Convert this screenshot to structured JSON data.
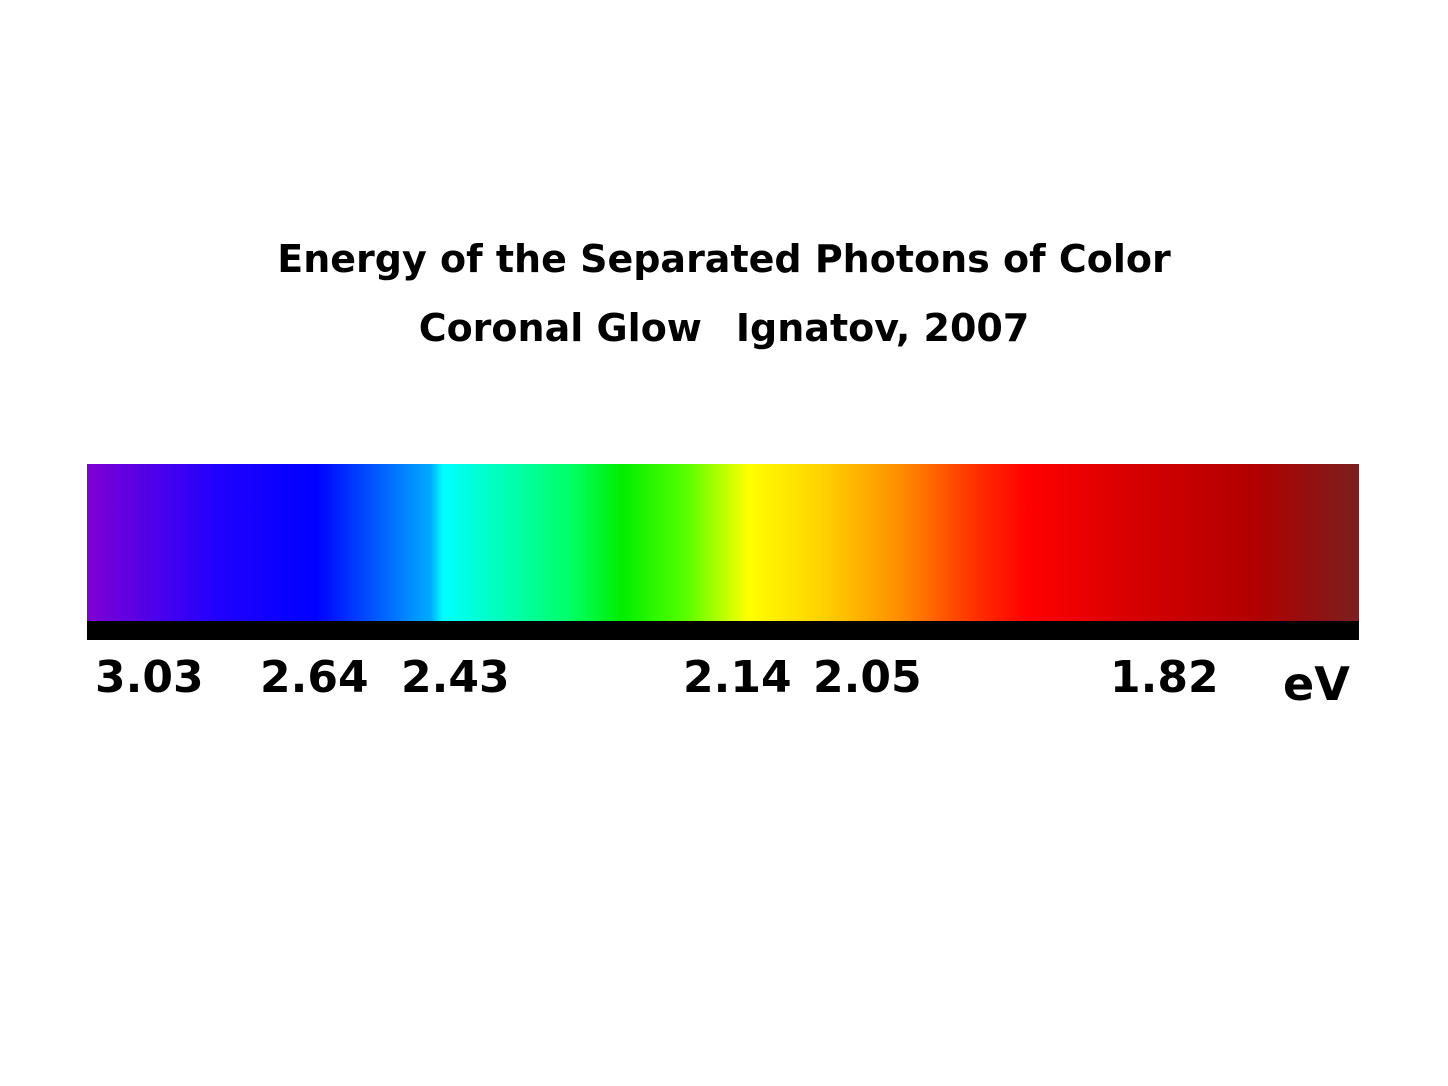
{
  "title": {
    "line1": "Energy of the Separated Photons of Color",
    "line2_left": "Coronal Glow",
    "line2_right": "Ignatov, 2007"
  },
  "spectrum": {
    "gradient_stops": [
      {
        "color": "#7f00d2",
        "at": 0
      },
      {
        "color": "#2200ff",
        "at": 0.1
      },
      {
        "color": "#0000ff",
        "at": 0.18
      },
      {
        "color": "#00aaff",
        "at": 0.27
      },
      {
        "color": "#00ffff",
        "at": 0.28
      },
      {
        "color": "#00ff66",
        "at": 0.38
      },
      {
        "color": "#00ee00",
        "at": 0.42
      },
      {
        "color": "#55ff00",
        "at": 0.47
      },
      {
        "color": "#ffff00",
        "at": 0.52
      },
      {
        "color": "#ffd000",
        "at": 0.58
      },
      {
        "color": "#ff8c00",
        "at": 0.64
      },
      {
        "color": "#ff2d00",
        "at": 0.7
      },
      {
        "color": "#ff0000",
        "at": 0.74
      },
      {
        "color": "#d30000",
        "at": 0.83
      },
      {
        "color": "#b00000",
        "at": 0.92
      },
      {
        "color": "#7a1f1f",
        "at": 1
      }
    ]
  },
  "axis": {
    "ticks": [
      "3.03",
      "2.64",
      "2.43",
      "2.14",
      "2.05",
      "1.82"
    ],
    "unit": "eV"
  }
}
